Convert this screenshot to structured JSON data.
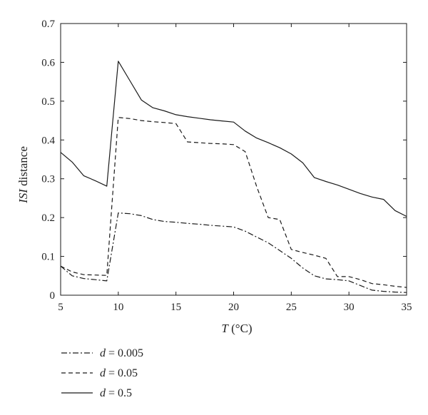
{
  "chart_data": {
    "type": "line",
    "xlabel": {
      "var": "T",
      "unit": " (°C)"
    },
    "ylabel": {
      "var": "ISI",
      "rest": " distance"
    },
    "xlim": [
      5,
      35
    ],
    "ylim": [
      0,
      0.7
    ],
    "xticks": [
      5,
      10,
      15,
      20,
      25,
      30,
      35
    ],
    "yticks": [
      0,
      0.1,
      0.2,
      0.3,
      0.4,
      0.5,
      0.6,
      0.7
    ],
    "ytick_labels": [
      "0",
      "0.1",
      "0.2",
      "0.3",
      "0.4",
      "0.5",
      "0.6",
      "0.7"
    ],
    "grid": false,
    "legend_position": "below",
    "series": [
      {
        "name": "d = 0.005",
        "legend_var": "d",
        "legend_value": " = 0.005",
        "style": "dashdot",
        "x": [
          5,
          6,
          7,
          8,
          9,
          10,
          11,
          12,
          13,
          14,
          15,
          16,
          17,
          18,
          19,
          20,
          21,
          22,
          23,
          24,
          25,
          26,
          27,
          28,
          29,
          30,
          31,
          32,
          33,
          34,
          35
        ],
        "y": [
          0.075,
          0.05,
          0.043,
          0.04,
          0.037,
          0.212,
          0.21,
          0.205,
          0.195,
          0.19,
          0.188,
          0.185,
          0.183,
          0.18,
          0.178,
          0.176,
          0.165,
          0.15,
          0.135,
          0.115,
          0.095,
          0.07,
          0.05,
          0.042,
          0.04,
          0.037,
          0.025,
          0.013,
          0.01,
          0.008,
          0.007
        ]
      },
      {
        "name": "d = 0.05",
        "legend_var": "d",
        "legend_value": " = 0.05",
        "style": "dashed",
        "x": [
          5,
          6,
          7,
          8,
          9,
          10,
          11,
          12,
          13,
          14,
          15,
          16,
          17,
          18,
          19,
          20,
          21,
          22,
          23,
          24,
          25,
          26,
          27,
          28,
          29,
          30,
          31,
          32,
          33,
          34,
          35
        ],
        "y": [
          0.075,
          0.06,
          0.053,
          0.052,
          0.051,
          0.458,
          0.455,
          0.45,
          0.447,
          0.445,
          0.442,
          0.395,
          0.393,
          0.391,
          0.39,
          0.388,
          0.37,
          0.28,
          0.2,
          0.195,
          0.118,
          0.11,
          0.103,
          0.095,
          0.048,
          0.048,
          0.04,
          0.03,
          0.027,
          0.023,
          0.02
        ]
      },
      {
        "name": "d = 0.5",
        "legend_var": "d",
        "legend_value": " = 0.5",
        "style": "solid",
        "x": [
          5,
          6,
          7,
          8,
          9,
          10,
          11,
          12,
          13,
          14,
          15,
          16,
          17,
          18,
          19,
          20,
          21,
          22,
          23,
          24,
          25,
          26,
          27,
          28,
          29,
          30,
          31,
          32,
          33,
          34,
          35
        ],
        "y": [
          0.368,
          0.343,
          0.308,
          0.295,
          0.281,
          0.603,
          0.553,
          0.503,
          0.483,
          0.475,
          0.465,
          0.46,
          0.456,
          0.452,
          0.449,
          0.446,
          0.423,
          0.405,
          0.393,
          0.38,
          0.364,
          0.341,
          0.303,
          0.293,
          0.284,
          0.273,
          0.262,
          0.253,
          0.247,
          0.218,
          0.203
        ]
      }
    ]
  }
}
